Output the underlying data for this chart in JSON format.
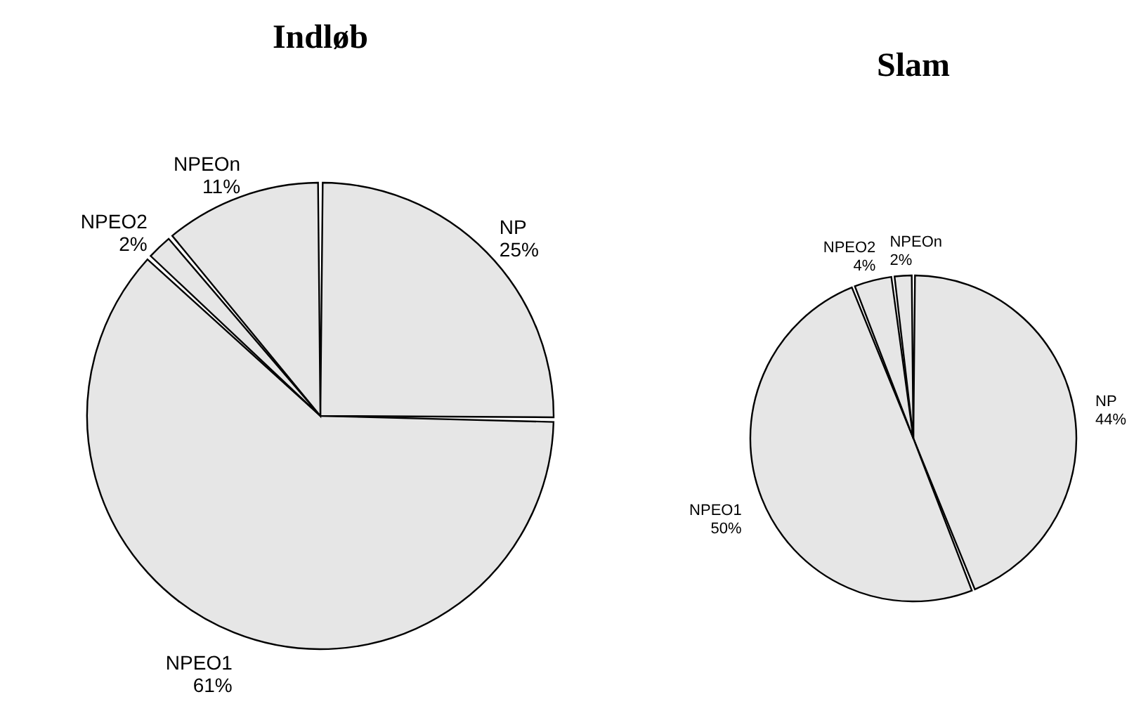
{
  "chart_data": [
    {
      "type": "pie",
      "title": "Indløb",
      "categories": [
        "NP",
        "NPEO1",
        "NPEO2",
        "NPEOn"
      ],
      "values": [
        25,
        61,
        2,
        11
      ],
      "colors": [
        "#e6e6e6",
        "#e6e6e6",
        "#e6e6e6",
        "#e6e6e6"
      ],
      "value_labels": [
        "25%",
        "61%",
        "2%",
        "11%"
      ]
    },
    {
      "type": "pie",
      "title": "Slam",
      "categories": [
        "NP",
        "NPEO1",
        "NPEO2",
        "NPEOn"
      ],
      "values": [
        44,
        50,
        4,
        2
      ],
      "colors": [
        "#e6e6e6",
        "#e6e6e6",
        "#e6e6e6",
        "#e6e6e6"
      ],
      "value_labels": [
        "44%",
        "50%",
        "4%",
        "2%"
      ]
    }
  ]
}
